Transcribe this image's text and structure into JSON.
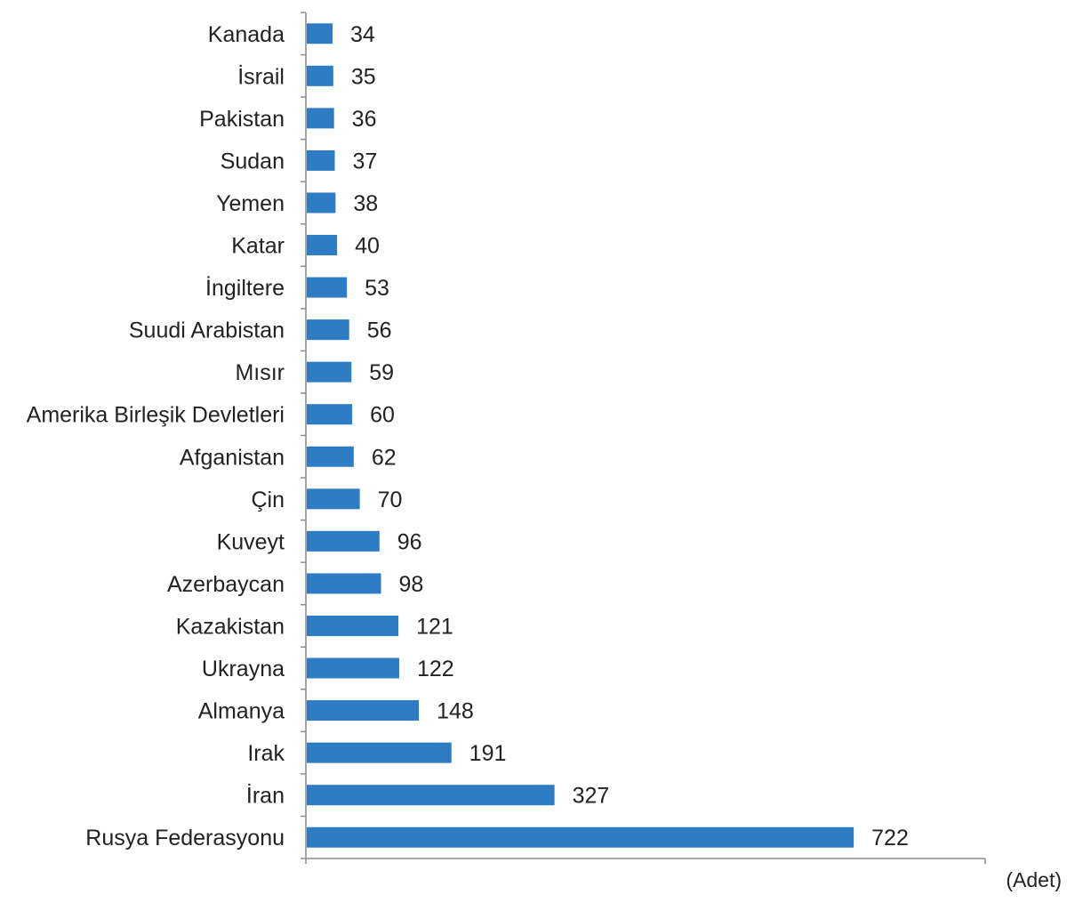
{
  "chart_data": {
    "type": "bar",
    "orientation": "horizontal",
    "categories": [
      "Kanada",
      "İsrail",
      "Pakistan",
      "Sudan",
      "Yemen",
      "Katar",
      "İngiltere",
      "Suudi Arabistan",
      "Mısır",
      "Amerika Birleşik Devletleri",
      "Afganistan",
      "Çin",
      "Kuveyt",
      "Azerbaycan",
      "Kazakistan",
      "Ukrayna",
      "Almanya",
      "Irak",
      "İran",
      "Rusya Federasyonu"
    ],
    "values": [
      34,
      35,
      36,
      37,
      38,
      40,
      53,
      56,
      59,
      60,
      62,
      70,
      96,
      98,
      121,
      122,
      148,
      191,
      327,
      722
    ],
    "title": "",
    "xlabel": "",
    "ylabel": "",
    "unit": "(Adet)",
    "xlim": [
      0,
      900
    ],
    "grid": false,
    "bar_color": "#2E7DC4",
    "data_labels": true
  }
}
